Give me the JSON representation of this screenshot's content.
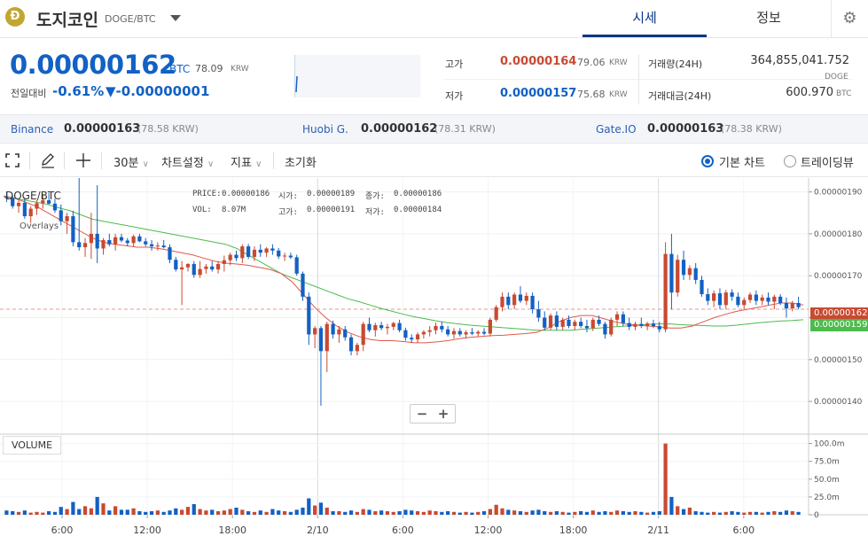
{
  "header": {
    "coin_logo": "Ð",
    "coin_name": "도지코인",
    "pair": "DOGE/BTC",
    "tabs": [
      {
        "label": "시세",
        "active": true
      },
      {
        "label": "정보",
        "active": false
      }
    ],
    "settings_icon": "gear-icon"
  },
  "ticker": {
    "price": "0.00000162",
    "price_unit": "BTC",
    "price_krw": "78.09",
    "price_krw_unit": "KRW",
    "change_label": "전일대비",
    "change_rate": "-0.61%",
    "change_amount": "▼-0.00000001",
    "high_label": "고가",
    "high_value": "0.00000164",
    "high_krw": "79.06",
    "low_label": "저가",
    "low_value": "0.00000157",
    "low_krw": "75.68",
    "krw_unit": "KRW",
    "volume_label": "거래량(24H)",
    "volume_value": "364,855,041.752",
    "volume_unit": "DOGE",
    "amount_label": "거래대금(24H)",
    "amount_value": "600.970",
    "amount_unit": "BTC"
  },
  "exchanges": [
    {
      "name": "Binance",
      "price": "0.00000163",
      "krw": "(78.58 KRW)"
    },
    {
      "name": "Huobi G.",
      "price": "0.00000162",
      "krw": "(78.31 KRW)"
    },
    {
      "name": "Gate.IO",
      "price": "0.00000163",
      "krw": "(78.38 KRW)"
    }
  ],
  "toolbar": {
    "fullscreen_icon": "fullscreen-icon",
    "draw_icon": "pencil-icon",
    "crosshair_icon": "crosshair-icon",
    "interval": "30분",
    "chart_settings": "차트설정",
    "indicators": "지표",
    "reset": "초기화",
    "mode_basic": "기본 차트",
    "mode_tradingview": "트레이딩뷰",
    "mode_selected": "기본 차트"
  },
  "chart_info": {
    "symbol": "DOGE/BTC",
    "overlays_label": "Overlays",
    "price_label": "PRICE:",
    "price": "0.00000186",
    "open_label": "시가:",
    "open": "0.00000189",
    "close_label": "종가:",
    "close": "0.00000186",
    "vol_label": "VOL:",
    "vol": "8.07M",
    "high_label": "고가:",
    "high": "0.00000191",
    "low_label": "저가:",
    "low": "0.00000184",
    "current_badge": "0.00000162",
    "ma_badge": "0.00000159",
    "zoom_out": "−",
    "zoom_in": "+",
    "volume_label": "VOLUME"
  },
  "colors": {
    "up": "#c84a31",
    "down": "#1261c4",
    "ma_short": "#e0584a",
    "ma_long": "#4cbb4c",
    "accent": "#093687"
  },
  "chart_data": {
    "type": "candlestick",
    "title": "",
    "xlabel": "",
    "ylabel": "",
    "ylim": [
      1.322e-06,
      1.933e-06
    ],
    "yticks": [
      "0.00000190",
      "0.00000180",
      "0.00000170",
      "0.00000160",
      "0.00000150",
      "0.00000140"
    ],
    "xticks": [
      "6:00",
      "12:00",
      "18:00",
      "2/10",
      "6:00",
      "12:00",
      "18:00",
      "2/11",
      "6:00"
    ],
    "volume_ticks": [
      "100.0m",
      "75.0m",
      "50.0m",
      "25.0m",
      "0"
    ],
    "volume_ylim": [
      0,
      102
    ],
    "candles": [
      {
        "o": 1.889,
        "h": 1.9,
        "l": 1.876,
        "c": 1.885,
        "v": 6
      },
      {
        "o": 1.885,
        "h": 1.893,
        "l": 1.86,
        "c": 1.866,
        "v": 5
      },
      {
        "o": 1.866,
        "h": 1.88,
        "l": 1.85,
        "c": 1.874,
        "v": 4
      },
      {
        "o": 1.874,
        "h": 1.886,
        "l": 1.836,
        "c": 1.842,
        "v": 6
      },
      {
        "o": 1.842,
        "h": 1.866,
        "l": 1.826,
        "c": 1.86,
        "v": 3
      },
      {
        "o": 1.86,
        "h": 1.88,
        "l": 1.845,
        "c": 1.873,
        "v": 4
      },
      {
        "o": 1.873,
        "h": 1.895,
        "l": 1.86,
        "c": 1.88,
        "v": 3
      },
      {
        "o": 1.88,
        "h": 1.898,
        "l": 1.87,
        "c": 1.872,
        "v": 5
      },
      {
        "o": 1.872,
        "h": 1.884,
        "l": 1.85,
        "c": 1.856,
        "v": 4
      },
      {
        "o": 1.856,
        "h": 1.87,
        "l": 1.82,
        "c": 1.83,
        "v": 11
      },
      {
        "o": 1.83,
        "h": 1.85,
        "l": 1.8,
        "c": 1.842,
        "v": 8
      },
      {
        "o": 1.842,
        "h": 1.855,
        "l": 1.77,
        "c": 1.78,
        "v": 18
      },
      {
        "o": 1.78,
        "h": 1.943,
        "l": 1.76,
        "c": 1.768,
        "v": 8
      },
      {
        "o": 1.768,
        "h": 1.79,
        "l": 1.745,
        "c": 1.778,
        "v": 12
      },
      {
        "o": 1.778,
        "h": 1.85,
        "l": 1.74,
        "c": 1.8,
        "v": 9
      },
      {
        "o": 1.8,
        "h": 1.916,
        "l": 1.73,
        "c": 1.765,
        "v": 25
      },
      {
        "o": 1.765,
        "h": 1.79,
        "l": 1.75,
        "c": 1.785,
        "v": 16
      },
      {
        "o": 1.785,
        "h": 1.8,
        "l": 1.77,
        "c": 1.775,
        "v": 6
      },
      {
        "o": 1.775,
        "h": 1.8,
        "l": 1.76,
        "c": 1.792,
        "v": 12
      },
      {
        "o": 1.792,
        "h": 1.8,
        "l": 1.78,
        "c": 1.784,
        "v": 7
      },
      {
        "o": 1.784,
        "h": 1.79,
        "l": 1.77,
        "c": 1.778,
        "v": 7
      },
      {
        "o": 1.778,
        "h": 1.798,
        "l": 1.77,
        "c": 1.794,
        "v": 9
      },
      {
        "o": 1.794,
        "h": 1.8,
        "l": 1.78,
        "c": 1.782,
        "v": 5
      },
      {
        "o": 1.782,
        "h": 1.79,
        "l": 1.77,
        "c": 1.775,
        "v": 4
      },
      {
        "o": 1.775,
        "h": 1.785,
        "l": 1.76,
        "c": 1.77,
        "v": 5
      },
      {
        "o": 1.77,
        "h": 1.78,
        "l": 1.76,
        "c": 1.772,
        "v": 6
      },
      {
        "o": 1.772,
        "h": 1.785,
        "l": 1.765,
        "c": 1.768,
        "v": 4
      },
      {
        "o": 1.768,
        "h": 1.775,
        "l": 1.73,
        "c": 1.738,
        "v": 6
      },
      {
        "o": 1.738,
        "h": 1.745,
        "l": 1.71,
        "c": 1.715,
        "v": 9
      },
      {
        "o": 1.715,
        "h": 1.735,
        "l": 1.63,
        "c": 1.72,
        "v": 7
      },
      {
        "o": 1.72,
        "h": 1.73,
        "l": 1.71,
        "c": 1.728,
        "v": 11
      },
      {
        "o": 1.728,
        "h": 1.735,
        "l": 1.695,
        "c": 1.702,
        "v": 15
      },
      {
        "o": 1.702,
        "h": 1.735,
        "l": 1.695,
        "c": 1.716,
        "v": 8
      },
      {
        "o": 1.716,
        "h": 1.728,
        "l": 1.705,
        "c": 1.722,
        "v": 6
      },
      {
        "o": 1.722,
        "h": 1.735,
        "l": 1.71,
        "c": 1.715,
        "v": 7
      },
      {
        "o": 1.715,
        "h": 1.735,
        "l": 1.705,
        "c": 1.728,
        "v": 5
      },
      {
        "o": 1.728,
        "h": 1.748,
        "l": 1.71,
        "c": 1.737,
        "v": 6
      },
      {
        "o": 1.737,
        "h": 1.755,
        "l": 1.725,
        "c": 1.75,
        "v": 8
      },
      {
        "o": 1.75,
        "h": 1.76,
        "l": 1.735,
        "c": 1.742,
        "v": 10
      },
      {
        "o": 1.742,
        "h": 1.775,
        "l": 1.73,
        "c": 1.77,
        "v": 7
      },
      {
        "o": 1.77,
        "h": 1.776,
        "l": 1.74,
        "c": 1.745,
        "v": 5
      },
      {
        "o": 1.745,
        "h": 1.77,
        "l": 1.735,
        "c": 1.762,
        "v": 4
      },
      {
        "o": 1.762,
        "h": 1.775,
        "l": 1.745,
        "c": 1.755,
        "v": 6
      },
      {
        "o": 1.755,
        "h": 1.768,
        "l": 1.745,
        "c": 1.765,
        "v": 4
      },
      {
        "o": 1.765,
        "h": 1.775,
        "l": 1.75,
        "c": 1.76,
        "v": 8
      },
      {
        "o": 1.76,
        "h": 1.766,
        "l": 1.74,
        "c": 1.746,
        "v": 6
      },
      {
        "o": 1.746,
        "h": 1.755,
        "l": 1.735,
        "c": 1.748,
        "v": 5
      },
      {
        "o": 1.748,
        "h": 1.755,
        "l": 1.74,
        "c": 1.744,
        "v": 4
      },
      {
        "o": 1.744,
        "h": 1.75,
        "l": 1.7,
        "c": 1.705,
        "v": 7
      },
      {
        "o": 1.705,
        "h": 1.71,
        "l": 1.64,
        "c": 1.65,
        "v": 10
      },
      {
        "o": 1.65,
        "h": 1.66,
        "l": 1.535,
        "c": 1.56,
        "v": 23
      },
      {
        "o": 1.56,
        "h": 1.58,
        "l": 1.527,
        "c": 1.575,
        "v": 13
      },
      {
        "o": 1.575,
        "h": 1.58,
        "l": 1.39,
        "c": 1.52,
        "v": 17
      },
      {
        "o": 1.52,
        "h": 1.59,
        "l": 1.47,
        "c": 1.585,
        "v": 10
      },
      {
        "o": 1.585,
        "h": 1.593,
        "l": 1.55,
        "c": 1.56,
        "v": 5
      },
      {
        "o": 1.56,
        "h": 1.58,
        "l": 1.54,
        "c": 1.572,
        "v": 5
      },
      {
        "o": 1.572,
        "h": 1.58,
        "l": 1.545,
        "c": 1.553,
        "v": 4
      },
      {
        "o": 1.553,
        "h": 1.56,
        "l": 1.51,
        "c": 1.52,
        "v": 6
      },
      {
        "o": 1.52,
        "h": 1.54,
        "l": 1.51,
        "c": 1.535,
        "v": 4
      },
      {
        "o": 1.535,
        "h": 1.59,
        "l": 1.52,
        "c": 1.585,
        "v": 8
      },
      {
        "o": 1.585,
        "h": 1.6,
        "l": 1.565,
        "c": 1.57,
        "v": 7
      },
      {
        "o": 1.57,
        "h": 1.588,
        "l": 1.555,
        "c": 1.582,
        "v": 5
      },
      {
        "o": 1.582,
        "h": 1.59,
        "l": 1.57,
        "c": 1.575,
        "v": 6
      },
      {
        "o": 1.575,
        "h": 1.585,
        "l": 1.56,
        "c": 1.578,
        "v": 5
      },
      {
        "o": 1.578,
        "h": 1.59,
        "l": 1.57,
        "c": 1.587,
        "v": 4
      },
      {
        "o": 1.587,
        "h": 1.595,
        "l": 1.565,
        "c": 1.57,
        "v": 5
      },
      {
        "o": 1.57,
        "h": 1.576,
        "l": 1.545,
        "c": 1.552,
        "v": 7
      },
      {
        "o": 1.552,
        "h": 1.56,
        "l": 1.54,
        "c": 1.548,
        "v": 6
      },
      {
        "o": 1.548,
        "h": 1.565,
        "l": 1.54,
        "c": 1.56,
        "v": 5
      },
      {
        "o": 1.56,
        "h": 1.57,
        "l": 1.55,
        "c": 1.566,
        "v": 4
      },
      {
        "o": 1.566,
        "h": 1.58,
        "l": 1.555,
        "c": 1.57,
        "v": 6
      },
      {
        "o": 1.57,
        "h": 1.588,
        "l": 1.56,
        "c": 1.58,
        "v": 5
      },
      {
        "o": 1.58,
        "h": 1.59,
        "l": 1.565,
        "c": 1.572,
        "v": 4
      },
      {
        "o": 1.572,
        "h": 1.58,
        "l": 1.555,
        "c": 1.56,
        "v": 5
      },
      {
        "o": 1.56,
        "h": 1.575,
        "l": 1.55,
        "c": 1.568,
        "v": 4
      },
      {
        "o": 1.568,
        "h": 1.575,
        "l": 1.555,
        "c": 1.56,
        "v": 3
      },
      {
        "o": 1.56,
        "h": 1.57,
        "l": 1.55,
        "c": 1.565,
        "v": 4
      },
      {
        "o": 1.565,
        "h": 1.575,
        "l": 1.558,
        "c": 1.562,
        "v": 3
      },
      {
        "o": 1.562,
        "h": 1.57,
        "l": 1.555,
        "c": 1.566,
        "v": 4
      },
      {
        "o": 1.566,
        "h": 1.575,
        "l": 1.558,
        "c": 1.562,
        "v": 5
      },
      {
        "o": 1.562,
        "h": 1.6,
        "l": 1.555,
        "c": 1.595,
        "v": 8
      },
      {
        "o": 1.595,
        "h": 1.63,
        "l": 1.59,
        "c": 1.625,
        "v": 14
      },
      {
        "o": 1.625,
        "h": 1.66,
        "l": 1.615,
        "c": 1.65,
        "v": 9
      },
      {
        "o": 1.65,
        "h": 1.66,
        "l": 1.62,
        "c": 1.63,
        "v": 7
      },
      {
        "o": 1.63,
        "h": 1.66,
        "l": 1.62,
        "c": 1.655,
        "v": 6
      },
      {
        "o": 1.655,
        "h": 1.675,
        "l": 1.635,
        "c": 1.64,
        "v": 5
      },
      {
        "o": 1.64,
        "h": 1.66,
        "l": 1.63,
        "c": 1.652,
        "v": 4
      },
      {
        "o": 1.652,
        "h": 1.66,
        "l": 1.61,
        "c": 1.62,
        "v": 6
      },
      {
        "o": 1.62,
        "h": 1.64,
        "l": 1.59,
        "c": 1.6,
        "v": 7
      },
      {
        "o": 1.6,
        "h": 1.615,
        "l": 1.57,
        "c": 1.576,
        "v": 5
      },
      {
        "o": 1.576,
        "h": 1.61,
        "l": 1.57,
        "c": 1.605,
        "v": 4
      },
      {
        "o": 1.605,
        "h": 1.615,
        "l": 1.57,
        "c": 1.578,
        "v": 5
      },
      {
        "o": 1.578,
        "h": 1.6,
        "l": 1.57,
        "c": 1.595,
        "v": 4
      },
      {
        "o": 1.595,
        "h": 1.605,
        "l": 1.575,
        "c": 1.58,
        "v": 3
      },
      {
        "o": 1.58,
        "h": 1.595,
        "l": 1.57,
        "c": 1.59,
        "v": 4
      },
      {
        "o": 1.59,
        "h": 1.6,
        "l": 1.575,
        "c": 1.58,
        "v": 5
      },
      {
        "o": 1.58,
        "h": 1.595,
        "l": 1.565,
        "c": 1.575,
        "v": 4
      },
      {
        "o": 1.575,
        "h": 1.6,
        "l": 1.568,
        "c": 1.595,
        "v": 6
      },
      {
        "o": 1.595,
        "h": 1.605,
        "l": 1.58,
        "c": 1.585,
        "v": 4
      },
      {
        "o": 1.585,
        "h": 1.59,
        "l": 1.55,
        "c": 1.56,
        "v": 5
      },
      {
        "o": 1.56,
        "h": 1.6,
        "l": 1.555,
        "c": 1.595,
        "v": 4
      },
      {
        "o": 1.595,
        "h": 1.615,
        "l": 1.58,
        "c": 1.608,
        "v": 6
      },
      {
        "o": 1.608,
        "h": 1.615,
        "l": 1.58,
        "c": 1.587,
        "v": 5
      },
      {
        "o": 1.587,
        "h": 1.6,
        "l": 1.57,
        "c": 1.578,
        "v": 4
      },
      {
        "o": 1.578,
        "h": 1.59,
        "l": 1.57,
        "c": 1.585,
        "v": 5
      },
      {
        "o": 1.585,
        "h": 1.6,
        "l": 1.575,
        "c": 1.58,
        "v": 4
      },
      {
        "o": 1.58,
        "h": 1.59,
        "l": 1.57,
        "c": 1.586,
        "v": 3
      },
      {
        "o": 1.586,
        "h": 1.595,
        "l": 1.575,
        "c": 1.58,
        "v": 4
      },
      {
        "o": 1.58,
        "h": 1.59,
        "l": 1.565,
        "c": 1.572,
        "v": 5
      },
      {
        "o": 1.572,
        "h": 1.78,
        "l": 1.565,
        "c": 1.752,
        "v": 100
      },
      {
        "o": 1.752,
        "h": 1.8,
        "l": 1.62,
        "c": 1.66,
        "v": 25
      },
      {
        "o": 1.66,
        "h": 1.75,
        "l": 1.65,
        "c": 1.738,
        "v": 12
      },
      {
        "o": 1.738,
        "h": 1.76,
        "l": 1.69,
        "c": 1.702,
        "v": 8
      },
      {
        "o": 1.702,
        "h": 1.725,
        "l": 1.69,
        "c": 1.718,
        "v": 10
      },
      {
        "o": 1.718,
        "h": 1.73,
        "l": 1.68,
        "c": 1.69,
        "v": 5
      },
      {
        "o": 1.69,
        "h": 1.7,
        "l": 1.65,
        "c": 1.656,
        "v": 4
      },
      {
        "o": 1.656,
        "h": 1.67,
        "l": 1.63,
        "c": 1.64,
        "v": 3
      },
      {
        "o": 1.64,
        "h": 1.665,
        "l": 1.625,
        "c": 1.658,
        "v": 4
      },
      {
        "o": 1.658,
        "h": 1.67,
        "l": 1.62,
        "c": 1.63,
        "v": 3
      },
      {
        "o": 1.63,
        "h": 1.666,
        "l": 1.62,
        "c": 1.66,
        "v": 4
      },
      {
        "o": 1.66,
        "h": 1.668,
        "l": 1.64,
        "c": 1.65,
        "v": 5
      },
      {
        "o": 1.65,
        "h": 1.66,
        "l": 1.625,
        "c": 1.63,
        "v": 4
      },
      {
        "o": 1.63,
        "h": 1.648,
        "l": 1.62,
        "c": 1.642,
        "v": 3
      },
      {
        "o": 1.642,
        "h": 1.66,
        "l": 1.635,
        "c": 1.655,
        "v": 4
      },
      {
        "o": 1.655,
        "h": 1.665,
        "l": 1.63,
        "c": 1.64,
        "v": 4
      },
      {
        "o": 1.64,
        "h": 1.655,
        "l": 1.63,
        "c": 1.648,
        "v": 3
      },
      {
        "o": 1.648,
        "h": 1.66,
        "l": 1.63,
        "c": 1.638,
        "v": 4
      },
      {
        "o": 1.638,
        "h": 1.655,
        "l": 1.62,
        "c": 1.65,
        "v": 5
      },
      {
        "o": 1.65,
        "h": 1.656,
        "l": 1.63,
        "c": 1.635,
        "v": 4
      },
      {
        "o": 1.635,
        "h": 1.648,
        "l": 1.6,
        "c": 1.622,
        "v": 6
      },
      {
        "o": 1.622,
        "h": 1.64,
        "l": 1.615,
        "c": 1.635,
        "v": 5
      },
      {
        "o": 1.635,
        "h": 1.65,
        "l": 1.62,
        "c": 1.625,
        "v": 4
      }
    ],
    "ma_short": [
      1.89,
      1.885,
      1.875,
      1.865,
      1.85,
      1.835,
      1.82,
      1.805,
      1.79,
      1.78,
      1.775,
      1.772,
      1.768,
      1.768,
      1.765,
      1.76,
      1.755,
      1.75,
      1.742,
      1.735,
      1.73,
      1.728,
      1.725,
      1.72,
      1.715,
      1.705,
      1.685,
      1.655,
      1.625,
      1.6,
      1.58,
      1.565,
      1.555,
      1.548,
      1.545,
      1.545,
      1.543,
      1.54,
      1.54,
      1.542,
      1.545,
      1.55,
      1.553,
      1.555,
      1.557,
      1.558,
      1.56,
      1.562,
      1.565,
      1.575,
      1.59,
      1.6,
      1.605,
      1.605,
      1.598,
      1.59,
      1.585,
      1.582,
      1.58,
      1.578,
      1.575,
      1.575,
      1.58,
      1.59,
      1.6,
      1.608,
      1.615,
      1.62,
      1.625,
      1.63,
      1.635,
      1.635,
      1.63
    ],
    "ma_long": [
      1.89,
      1.885,
      1.88,
      1.875,
      1.87,
      1.862,
      1.855,
      1.845,
      1.835,
      1.83,
      1.825,
      1.82,
      1.815,
      1.81,
      1.805,
      1.8,
      1.795,
      1.79,
      1.785,
      1.78,
      1.775,
      1.765,
      1.75,
      1.735,
      1.72,
      1.705,
      1.695,
      1.685,
      1.675,
      1.665,
      1.655,
      1.645,
      1.638,
      1.63,
      1.622,
      1.615,
      1.608,
      1.602,
      1.597,
      1.592,
      1.588,
      1.585,
      1.582,
      1.58,
      1.578,
      1.576,
      1.574,
      1.572,
      1.57,
      1.57,
      1.57,
      1.57,
      1.572,
      1.574,
      1.576,
      1.578,
      1.58,
      1.582,
      1.584,
      1.585,
      1.585,
      1.583,
      1.582,
      1.581,
      1.58,
      1.58,
      1.582,
      1.585,
      1.588,
      1.59,
      1.592,
      1.593,
      1.595
    ],
    "current_price": 1.62,
    "grid": true
  }
}
